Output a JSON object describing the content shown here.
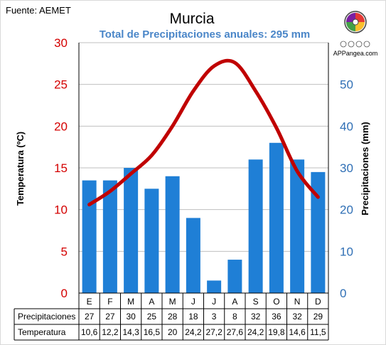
{
  "source_text": "Fuente: AEMET",
  "brand_text": "APPangea.com",
  "colors": {
    "bars": "#1f7fd6",
    "line": "#c00000",
    "left_ticks": "#d40000",
    "right_ticks": "#2f6fb5",
    "subtitle": "#4a86c8"
  },
  "chart_data": {
    "type": "bar",
    "title": "Murcia",
    "subtitle": "Total de Precipitaciones anuales: 295 mm",
    "categories": [
      "E",
      "F",
      "M",
      "A",
      "M",
      "J",
      "J",
      "A",
      "S",
      "O",
      "N",
      "D"
    ],
    "series": [
      {
        "name": "Precipitaciones",
        "type": "bar",
        "axis": "right",
        "values": [
          27,
          27,
          30,
          25,
          28,
          18,
          3,
          8,
          32,
          36,
          32,
          29
        ]
      },
      {
        "name": "Temperatura",
        "type": "line",
        "axis": "left",
        "values": [
          10.6,
          12.2,
          14.3,
          16.5,
          20,
          24.2,
          27.2,
          27.6,
          24.2,
          19.8,
          14.6,
          11.5
        ]
      }
    ],
    "table_labels": {
      "values": [
        "27",
        "27",
        "30",
        "25",
        "28",
        "18",
        "3",
        "8",
        "32",
        "36",
        "32",
        "29"
      ]
    },
    "table_temps": [
      "10,6",
      "12,2",
      "14,3",
      "16,5",
      "20",
      "24,2",
      "27,2",
      "27,6",
      "24,2",
      "19,8",
      "14,6",
      "11,5"
    ],
    "left_axis": {
      "label": "Temperatura (ºC)",
      "range": [
        0,
        30
      ],
      "ticks": [
        "0",
        "5",
        "10",
        "15",
        "20",
        "25",
        "30"
      ]
    },
    "right_axis": {
      "label": "Precipitaciones (mm)",
      "range": [
        0,
        60
      ],
      "ticks": [
        "0",
        "10",
        "20",
        "30",
        "40",
        "50"
      ]
    },
    "grid": true,
    "legend": "none"
  }
}
